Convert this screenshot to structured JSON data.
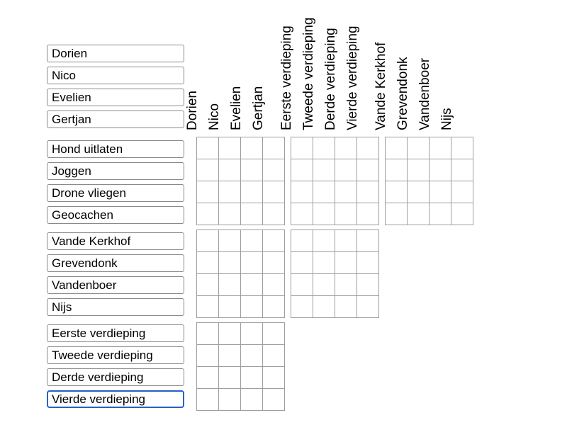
{
  "puzzle": {
    "column_groups": [
      {
        "name": "names",
        "labels": [
          "Dorien",
          "Nico",
          "Evelien",
          "Gertjan"
        ]
      },
      {
        "name": "floors",
        "labels": [
          "Eerste verdieping",
          "Tweede verdieping",
          "Derde verdieping",
          "Vierde verdieping"
        ]
      },
      {
        "name": "surnames",
        "labels": [
          "Vande Kerkhof",
          "Grevendonk",
          "Vandenboer",
          "Nijs"
        ]
      }
    ],
    "row_groups": [
      {
        "name": "names",
        "labels": [
          "Dorien",
          "Nico",
          "Evelien",
          "Gertjan"
        ]
      },
      {
        "name": "activities",
        "labels": [
          "Hond uitlaten",
          "Joggen",
          "Drone vliegen",
          "Geocachen"
        ]
      },
      {
        "name": "surnames",
        "labels": [
          "Vande Kerkhof",
          "Grevendonk",
          "Vandenboer",
          "Nijs"
        ]
      },
      {
        "name": "floors",
        "labels": [
          "Eerste verdieping",
          "Tweede verdieping",
          "Derde verdieping",
          "Vierde verdieping"
        ]
      }
    ],
    "focused_item": "Vierde verdieping",
    "items_per_group": 4
  },
  "colors": {
    "background": "#ffffff",
    "text": "#000000",
    "grid_border": "#9e9e9e",
    "input_border": "#8a8a8a",
    "focus_border": "#2760c6"
  }
}
